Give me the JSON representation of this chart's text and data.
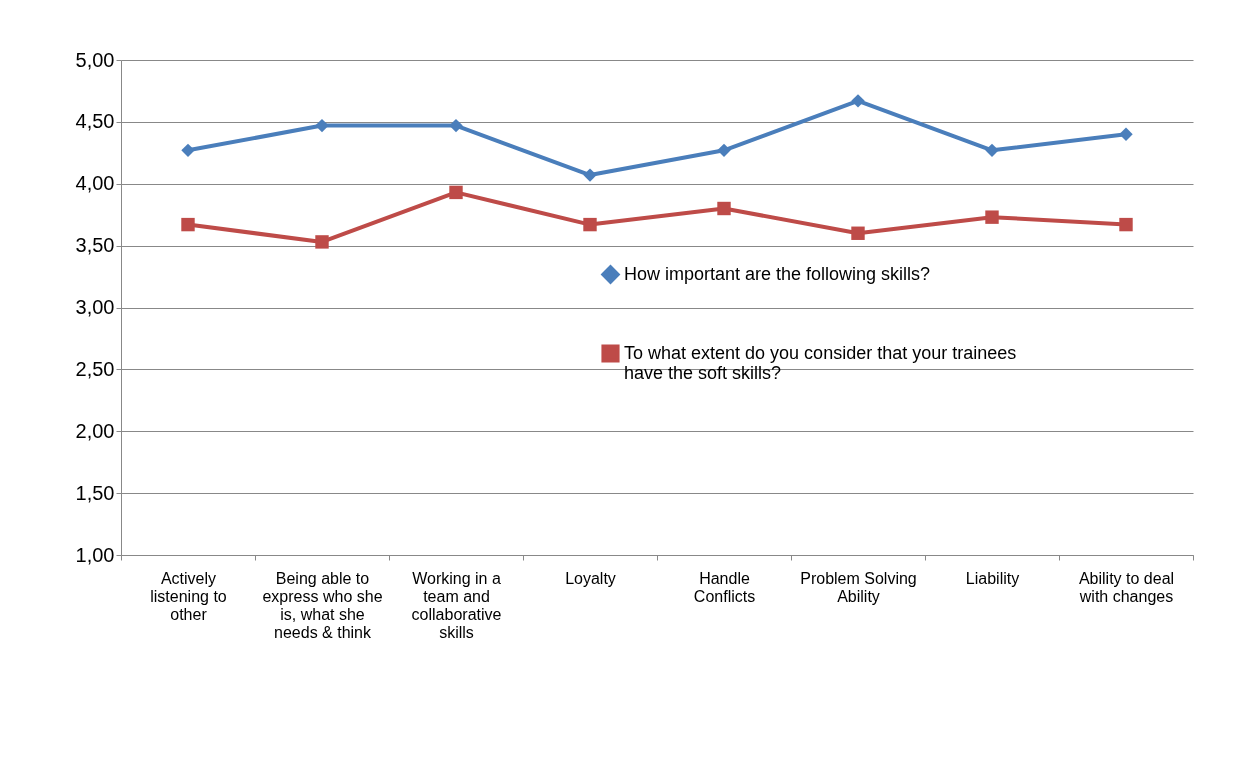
{
  "chart_data": {
    "type": "line",
    "categories": [
      "Actively listening to other",
      "Being able to express who she is, what she needs & think",
      "Working in a team and collaborative skills",
      "Loyalty",
      "Handle Conflicts",
      "Problem Solving Ability",
      "Liability",
      "Ability to deal with changes"
    ],
    "series": [
      {
        "name": "How important are the following skills?",
        "color": "#4a7ebb",
        "marker": "diamond",
        "values": [
          4.27,
          4.47,
          4.47,
          4.07,
          4.27,
          4.67,
          4.27,
          4.4
        ]
      },
      {
        "name": "To what extent do you consider that your trainees have the soft skills?",
        "color": "#be4b48",
        "marker": "square",
        "values": [
          3.67,
          3.53,
          3.93,
          3.67,
          3.8,
          3.6,
          3.73,
          3.67
        ]
      }
    ],
    "ylim": [
      1,
      5
    ],
    "yticks": [
      {
        "value": 1,
        "label": "1,00"
      },
      {
        "value": 1.5,
        "label": "1,50"
      },
      {
        "value": 2,
        "label": "2,00"
      },
      {
        "value": 2.5,
        "label": "2,50"
      },
      {
        "value": 3,
        "label": "3,00"
      },
      {
        "value": 3.5,
        "label": "3,50"
      },
      {
        "value": 4,
        "label": "4,00"
      },
      {
        "value": 4.5,
        "label": "4,50"
      },
      {
        "value": 5,
        "label": "5,00"
      }
    ],
    "grid": "y",
    "legend": "right",
    "line_style": "solid"
  }
}
